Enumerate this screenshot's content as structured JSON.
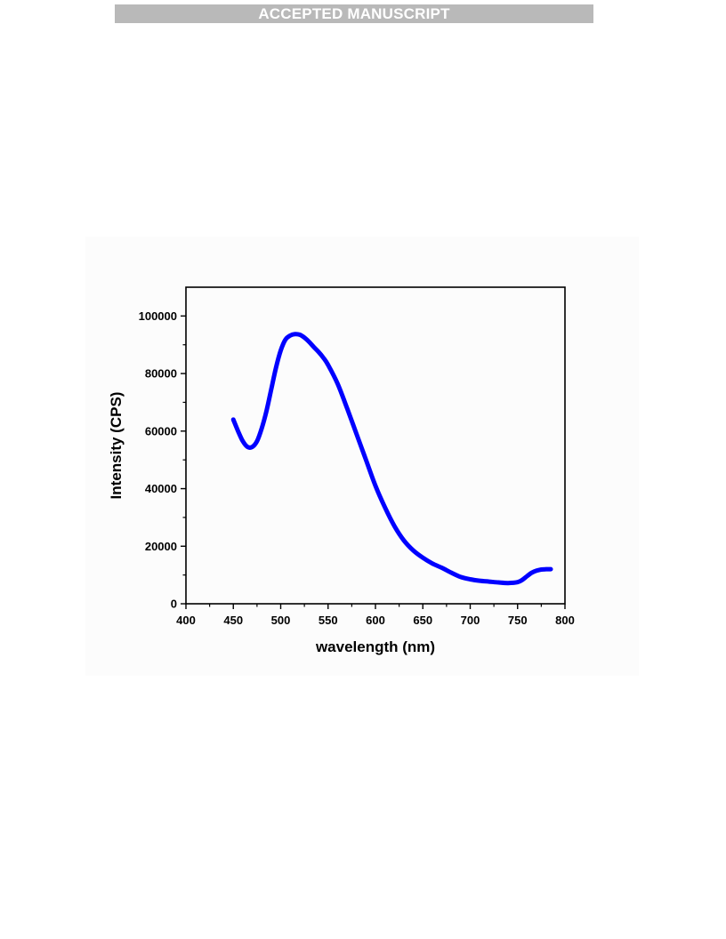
{
  "header": {
    "banner_text": "ACCEPTED MANUSCRIPT"
  },
  "chart_data": {
    "type": "line",
    "xlabel": "wavelength (nm)",
    "ylabel": "Intensity (CPS)",
    "xlim": [
      400,
      800
    ],
    "ylim": [
      0,
      110000
    ],
    "x_ticks": [
      400,
      450,
      500,
      550,
      600,
      650,
      700,
      750,
      800
    ],
    "y_ticks": [
      0,
      20000,
      40000,
      60000,
      80000,
      100000
    ],
    "grid": false,
    "series_color": "#0000ff",
    "series": [
      {
        "x": [
          450,
          455,
          460,
          465,
          470,
          475,
          480,
          485,
          490,
          495,
          500,
          505,
          510,
          515,
          520,
          525,
          530,
          535,
          540,
          545,
          550,
          560,
          570,
          580,
          590,
          600,
          610,
          620,
          630,
          640,
          650,
          660,
          670,
          680,
          690,
          700,
          710,
          720,
          730,
          740,
          750,
          755,
          760,
          765,
          770,
          775,
          780,
          785
        ],
        "y": [
          64000,
          60000,
          56500,
          54500,
          54500,
          56500,
          61000,
          67000,
          74500,
          82000,
          88000,
          91800,
          93200,
          93700,
          93500,
          92500,
          91000,
          89200,
          87500,
          85500,
          83000,
          76500,
          68000,
          59000,
          50000,
          41000,
          33500,
          27000,
          22000,
          18500,
          16000,
          14000,
          12500,
          10800,
          9300,
          8500,
          8000,
          7700,
          7400,
          7200,
          7500,
          8300,
          9600,
          10800,
          11500,
          11900,
          12000,
          12000
        ]
      }
    ]
  }
}
